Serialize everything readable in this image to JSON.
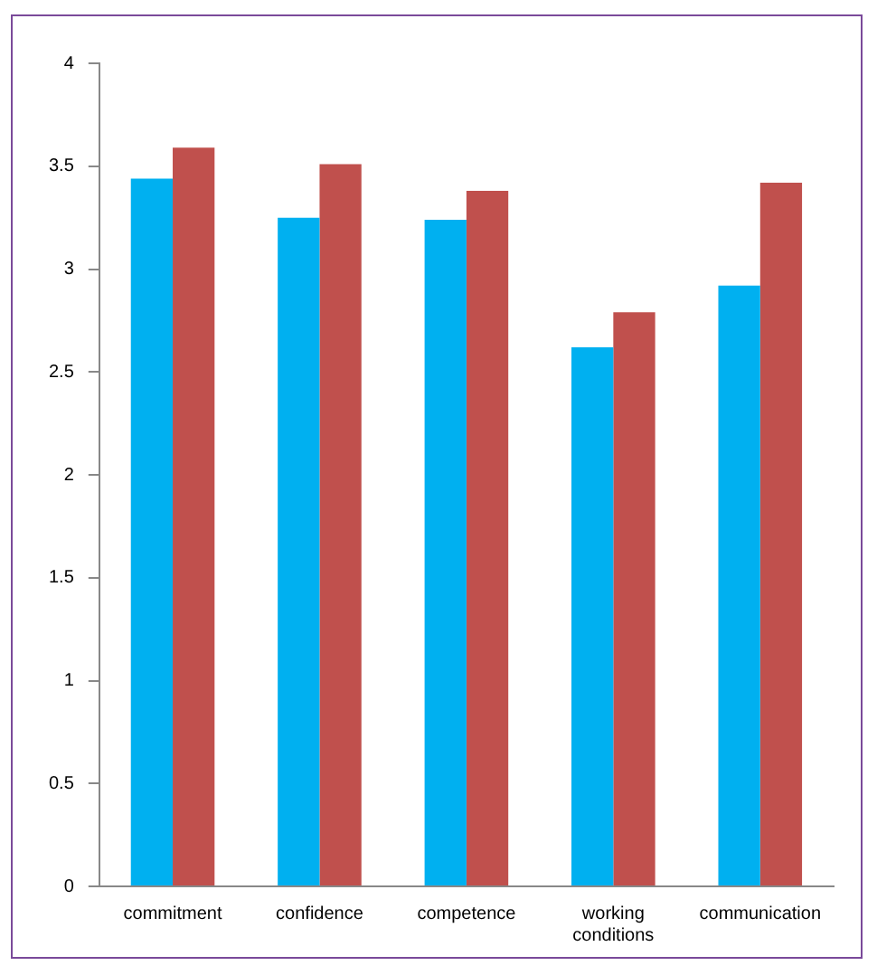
{
  "chart_data": {
    "type": "bar",
    "categories": [
      "commitment",
      "confidence",
      "competence",
      "working conditions",
      "communication"
    ],
    "series": [
      {
        "color": "#00b0f0",
        "values": [
          3.44,
          3.25,
          3.24,
          2.62,
          2.92
        ]
      },
      {
        "color": "#c0504d",
        "values": [
          3.59,
          3.51,
          3.38,
          2.79,
          3.42
        ]
      }
    ],
    "ylim": [
      0,
      4
    ],
    "yticks": [
      0,
      0.5,
      1,
      1.5,
      2,
      2.5,
      3,
      3.5,
      4
    ],
    "grid": false,
    "legend": false
  }
}
